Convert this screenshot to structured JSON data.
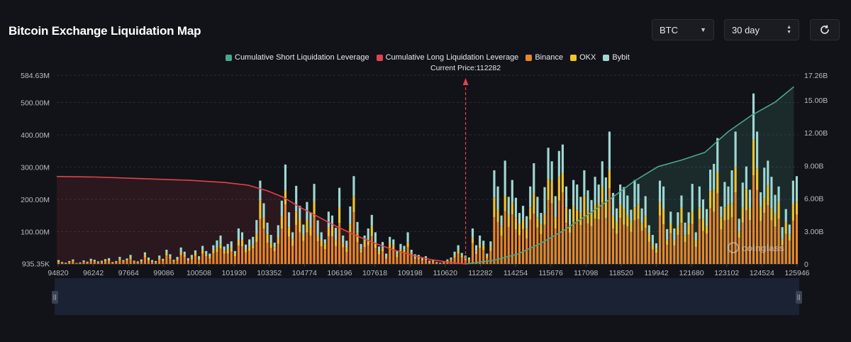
{
  "page": {
    "title": "Bitcoin Exchange Liquidation Map"
  },
  "controls": {
    "coin": "BTC",
    "range": "30 day",
    "refresh_icon": "refresh-icon",
    "coin_dropdown_icon": "chevron-down-icon",
    "range_stepper_icon": "up-down-chevron-icon"
  },
  "legend": [
    {
      "label": "Cumulative Short Liquidation Leverage",
      "color": "#4aa58f"
    },
    {
      "label": "Cumulative Long Liquidation Leverage",
      "color": "#e0434b"
    },
    {
      "label": "Binance",
      "color": "#e8862a"
    },
    {
      "label": "OKX",
      "color": "#f1c22e"
    },
    {
      "label": "Bybit",
      "color": "#9fd8d3"
    }
  ],
  "chart_data": {
    "type": "bar",
    "title": "Bitcoin Exchange Liquidation Map",
    "current_price_label": "Current Price:112282",
    "current_price": 112282,
    "x_ticks": [
      "94820",
      "96242",
      "97664",
      "99086",
      "100508",
      "101930",
      "103352",
      "104774",
      "106196",
      "107618",
      "109198",
      "110620",
      "112282",
      "114254",
      "115676",
      "117098",
      "118520",
      "119942",
      "121680",
      "123102",
      "124524",
      "125946"
    ],
    "y_left": {
      "ticks": [
        "935.35K",
        "100.00M",
        "200.00M",
        "300.00M",
        "400.00M",
        "500.00M",
        "584.63M"
      ],
      "values": [
        0.94,
        100,
        200,
        300,
        400,
        500,
        584.63
      ],
      "unit": "M",
      "min": 0,
      "max": 584.63
    },
    "y_right": {
      "ticks": [
        "0",
        "3.00B",
        "6.00B",
        "9.00B",
        "12.00B",
        "15.00B",
        "17.26B"
      ],
      "values": [
        0,
        3,
        6,
        9,
        12,
        15,
        17.26
      ],
      "unit": "B",
      "min": 0,
      "max": 17.26
    },
    "price_min": 94820,
    "price_max": 126500,
    "bars_total_M": [
      12,
      6,
      4,
      9,
      14,
      3,
      5,
      11,
      7,
      16,
      13,
      8,
      10,
      15,
      18,
      6,
      9,
      22,
      12,
      17,
      28,
      10,
      8,
      14,
      36,
      20,
      12,
      9,
      26,
      16,
      44,
      30,
      13,
      22,
      51,
      38,
      18,
      28,
      42,
      24,
      56,
      40,
      32,
      58,
      73,
      88,
      54,
      62,
      70,
      40,
      110,
      98,
      60,
      76,
      84,
      136,
      258,
      188,
      128,
      90,
      66,
      120,
      196,
      308,
      160,
      98,
      242,
      180,
      122,
      192,
      160,
      248,
      135,
      98,
      76,
      162,
      150,
      112,
      236,
      88,
      72,
      178,
      272,
      130,
      62,
      88,
      110,
      152,
      98,
      54,
      68,
      32,
      84,
      76,
      40,
      62,
      56,
      98,
      44,
      30,
      28,
      18,
      24,
      10,
      12,
      6,
      4,
      8,
      14,
      20,
      38,
      58,
      34,
      26,
      20,
      110,
      58,
      88,
      72,
      32,
      70,
      290,
      240,
      150,
      320,
      208,
      260,
      205,
      158,
      180,
      148,
      240,
      312,
      208,
      158,
      238,
      360,
      318,
      210,
      350,
      370,
      240,
      170,
      260,
      246,
      208,
      290,
      228,
      198,
      270,
      246,
      318,
      268,
      410,
      220,
      172,
      246,
      238,
      212,
      168,
      260,
      248,
      172,
      210,
      120,
      90,
      64,
      258,
      240,
      108,
      162,
      110,
      160,
      212,
      128,
      160,
      248,
      98,
      240,
      200,
      170,
      292,
      310,
      390,
      178,
      254,
      240,
      290,
      410,
      140,
      252,
      302,
      230,
      528,
      410,
      222,
      298,
      320,
      270,
      214,
      240,
      114,
      170,
      122,
      258,
      272
    ],
    "long_cumulative_B": [
      [
        94820,
        8.0
      ],
      [
        96500,
        7.95
      ],
      [
        98500,
        7.8
      ],
      [
        100500,
        7.65
      ],
      [
        102000,
        7.45
      ],
      [
        103000,
        7.2
      ],
      [
        103800,
        6.7
      ],
      [
        104500,
        6.1
      ],
      [
        105200,
        5.2
      ],
      [
        106000,
        4.3
      ],
      [
        106800,
        3.4
      ],
      [
        107600,
        2.6
      ],
      [
        108400,
        1.9
      ],
      [
        109200,
        1.3
      ],
      [
        110000,
        0.8
      ],
      [
        110800,
        0.4
      ],
      [
        111600,
        0.15
      ],
      [
        112282,
        0.0
      ]
    ],
    "short_cumulative_B": [
      [
        112282,
        0.0
      ],
      [
        113500,
        0.35
      ],
      [
        114500,
        0.9
      ],
      [
        115500,
        1.9
      ],
      [
        116500,
        3.1
      ],
      [
        117500,
        4.5
      ],
      [
        118500,
        6.0
      ],
      [
        119500,
        7.6
      ],
      [
        120500,
        8.9
      ],
      [
        121500,
        9.5
      ],
      [
        122500,
        10.2
      ],
      [
        123500,
        12.1
      ],
      [
        124500,
        13.6
      ],
      [
        125500,
        14.8
      ],
      [
        126300,
        16.2
      ]
    ]
  }
}
